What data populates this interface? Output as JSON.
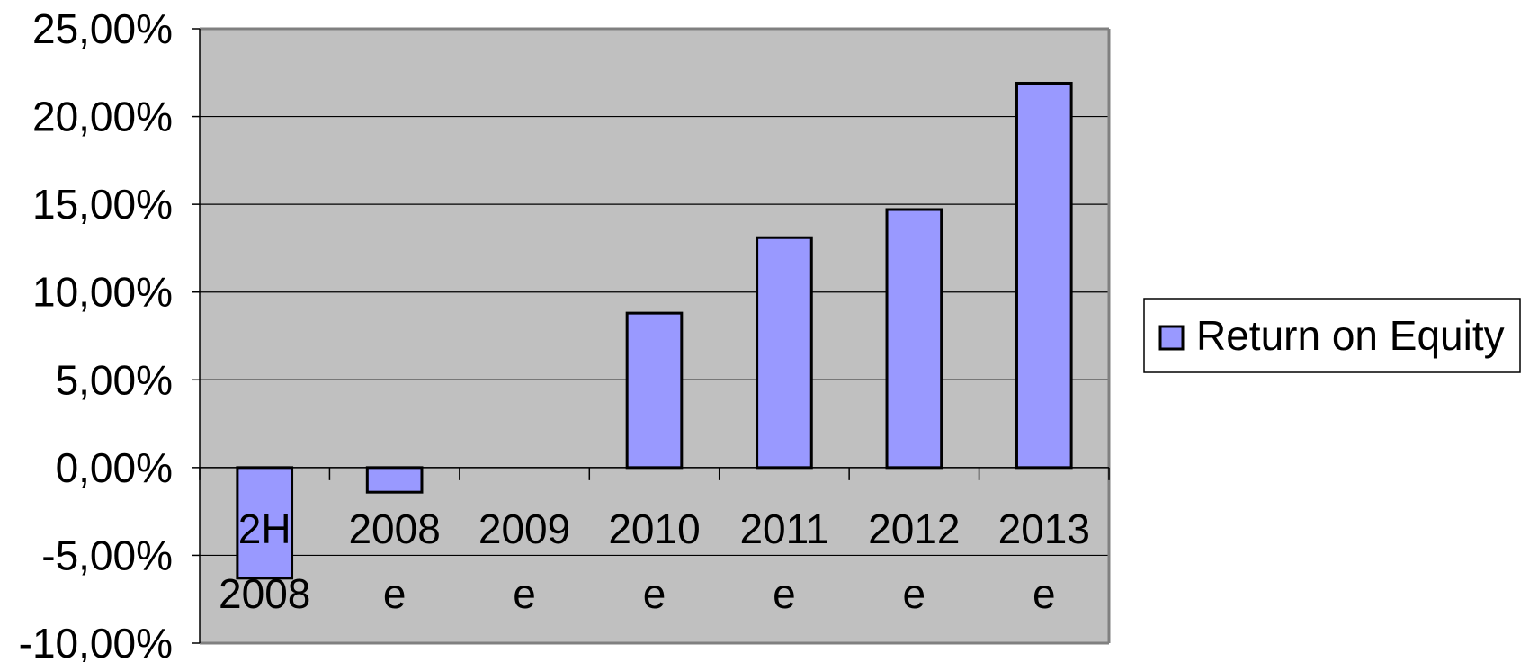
{
  "chart_data": {
    "type": "bar",
    "categories": [
      [
        "2H",
        "2008"
      ],
      [
        "2008",
        "e"
      ],
      [
        "2009",
        "e"
      ],
      [
        "2010",
        "e"
      ],
      [
        "2011",
        "e"
      ],
      [
        "2012",
        "e"
      ],
      [
        "2013",
        "e"
      ]
    ],
    "series": [
      {
        "name": "Return on Equity",
        "values": [
          -6.3,
          -1.4,
          0.0,
          8.8,
          13.1,
          14.7,
          21.9
        ],
        "color": "#9999ff"
      }
    ],
    "ylim": [
      -10,
      25
    ],
    "ytick_labels": [
      "-10,00%",
      "-5,00%",
      "0,00%",
      "5,00%",
      "10,00%",
      "15,00%",
      "20,00%",
      "25,00%"
    ],
    "grid": true,
    "legend_position": "right",
    "plot_background": "#c0c0c0",
    "gridline_color": "#000000",
    "bar_border_color": "#000000"
  }
}
